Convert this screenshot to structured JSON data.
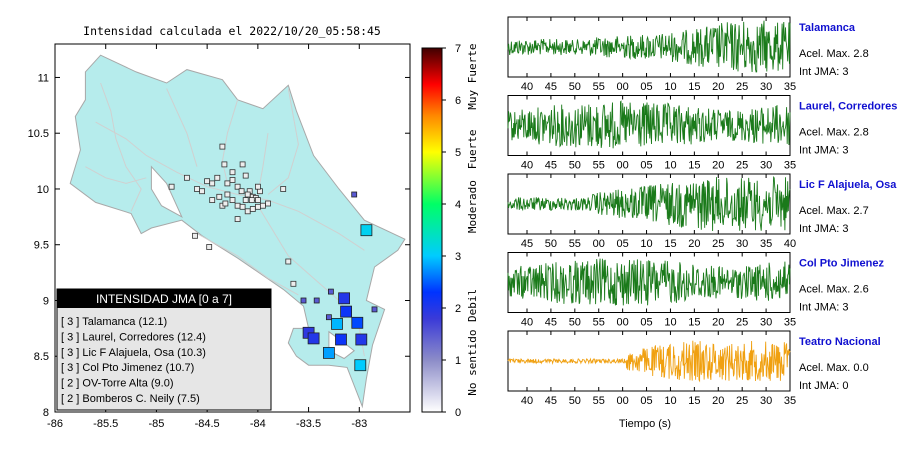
{
  "title": "Intensidad calculada el 2022/10/20_05:58:45",
  "chart_data": {
    "type": "map",
    "xaxis_ticks": [
      "-86",
      "-85.5",
      "-85",
      "-84.5",
      "-84",
      "-83.5",
      "-83"
    ],
    "yaxis_ticks": [
      "8",
      "8.5",
      "9",
      "9.5",
      "10",
      "10.5",
      "11"
    ],
    "xlim": [
      -86,
      -82.5
    ],
    "ylim": [
      8,
      11.3
    ],
    "colorbar": {
      "ticks": [
        "0",
        "1",
        "2",
        "3",
        "4",
        "5",
        "6",
        "7"
      ],
      "range": [
        0,
        7
      ],
      "level_labels": [
        "No sentido",
        "Debil",
        "Moderado",
        "Fuerte",
        "Muy Fuerte"
      ],
      "colors": [
        "#ffffff",
        "#6b6bd4",
        "#0000ff",
        "#00ccff",
        "#00ff66",
        "#ffff00",
        "#ff8800",
        "#ff0000",
        "#550000"
      ]
    },
    "legend": {
      "header": "INTENSIDAD JMA [0 a 7]",
      "items": [
        "[ 3 ]  Talamanca (12.1)",
        "[ 3 ]  Laurel, Corredores (12.4)",
        "[ 3 ]  Lic F Alajuela, Osa (10.3)",
        "[ 3 ]  Col Pto Jimenez (10.7)",
        "[ 2 ]  OV-Torre Alta (9.0)",
        "[ 2 ]  Bomberos C. Neily (7.5)"
      ]
    },
    "stations": [
      {
        "lon": -82.93,
        "lat": 9.63,
        "val": 3.1
      },
      {
        "lon": -83.15,
        "lat": 9.02,
        "val": 2.0
      },
      {
        "lon": -83.13,
        "lat": 8.9,
        "val": 2.2
      },
      {
        "lon": -83.22,
        "lat": 8.79,
        "val": 2.9
      },
      {
        "lon": -83.02,
        "lat": 8.8,
        "val": 2.4
      },
      {
        "lon": -83.5,
        "lat": 8.71,
        "val": 1.9
      },
      {
        "lon": -83.45,
        "lat": 8.66,
        "val": 2.0
      },
      {
        "lon": -83.18,
        "lat": 8.65,
        "val": 2.2
      },
      {
        "lon": -82.98,
        "lat": 8.65,
        "val": 2.0
      },
      {
        "lon": -83.3,
        "lat": 8.53,
        "val": 2.8
      },
      {
        "lon": -82.99,
        "lat": 8.42,
        "val": 3.0
      },
      {
        "lon": -83.55,
        "lat": 9.0,
        "val": 1.5
      },
      {
        "lon": -83.42,
        "lat": 9.0,
        "val": 1.5
      },
      {
        "lon": -83.28,
        "lat": 9.08,
        "val": 1.5
      },
      {
        "lon": -82.85,
        "lat": 8.92,
        "val": 1.5
      },
      {
        "lon": -83.3,
        "lat": 8.85,
        "val": 1.5
      },
      {
        "lon": -83.05,
        "lat": 9.95,
        "val": 1.5
      }
    ],
    "small_stations": [
      [
        -84.35,
        10.38
      ],
      [
        -84.33,
        10.22
      ],
      [
        -84.15,
        10.22
      ],
      [
        -84.25,
        10.15
      ],
      [
        -84.12,
        10.12
      ],
      [
        -84.5,
        10.07
      ],
      [
        -84.45,
        10.05
      ],
      [
        -84.2,
        10.02
      ],
      [
        -84.16,
        9.98
      ],
      [
        -84.08,
        9.98
      ],
      [
        -84.1,
        9.95
      ],
      [
        -84.05,
        9.93
      ],
      [
        -84.02,
        9.92
      ],
      [
        -84.06,
        9.9
      ],
      [
        -84.12,
        9.9
      ],
      [
        -84.0,
        9.9
      ],
      [
        -84.2,
        9.85
      ],
      [
        -84.0,
        9.84
      ],
      [
        -83.9,
        9.87
      ],
      [
        -83.95,
        9.85
      ],
      [
        -84.3,
        9.95
      ],
      [
        -84.38,
        9.93
      ],
      [
        -84.35,
        9.85
      ],
      [
        -84.1,
        9.8
      ],
      [
        -84.55,
        9.98
      ],
      [
        -84.3,
        10.05
      ],
      [
        -84.25,
        10.08
      ],
      [
        -84.4,
        10.1
      ],
      [
        -84.45,
        9.9
      ],
      [
        -84.25,
        9.9
      ],
      [
        -84.15,
        9.84
      ],
      [
        -84.05,
        9.82
      ],
      [
        -83.98,
        9.98
      ],
      [
        -84.62,
        9.58
      ],
      [
        -84.48,
        9.48
      ],
      [
        -83.7,
        9.35
      ],
      [
        -83.65,
        9.15
      ],
      [
        -84.6,
        10.0
      ],
      [
        -84.2,
        9.73
      ],
      [
        -84.32,
        9.87
      ],
      [
        -84.0,
        10.02
      ],
      [
        -83.75,
        10.0
      ],
      [
        -84.7,
        10.1
      ],
      [
        -84.85,
        10.02
      ]
    ],
    "traces": [
      {
        "name": "Talamanca",
        "acel_label": "Acel. Max. 2.8",
        "int_label": "Int JMA: 3",
        "ticks": [
          "40",
          "45",
          "50",
          "55",
          "00",
          "05",
          "10",
          "15",
          "20",
          "25",
          "30",
          "35"
        ],
        "color": "#1a7a1a",
        "style": "buildup"
      },
      {
        "name": "Laurel, Corredores",
        "acel_label": "Acel. Max. 2.8",
        "int_label": "Int JMA: 3",
        "ticks": [
          "40",
          "45",
          "50",
          "55",
          "00",
          "05",
          "10",
          "15",
          "20",
          "25",
          "30",
          "35"
        ],
        "color": "#1a7a1a",
        "style": "full"
      },
      {
        "name": "Lic F Alajuela, Osa",
        "acel_label": "Acel. Max. 2.7",
        "int_label": "Int JMA: 3",
        "ticks": [
          "45",
          "50",
          "55",
          "00",
          "05",
          "10",
          "15",
          "20",
          "25",
          "30",
          "35",
          "40"
        ],
        "color": "#1a7a1a",
        "style": "ramp"
      },
      {
        "name": "Col Pto Jimenez",
        "acel_label": "Acel. Max. 2.6",
        "int_label": "Int JMA: 3",
        "ticks": [
          "40",
          "45",
          "50",
          "55",
          "00",
          "05",
          "10",
          "15",
          "20",
          "25",
          "30",
          "35"
        ],
        "color": "#1a7a1a",
        "style": "full"
      },
      {
        "name": "Teatro Nacional",
        "acel_label": "Acel. Max. 0.0",
        "int_label": "Int JMA: 0",
        "ticks": [
          "40",
          "45",
          "50",
          "55",
          "00",
          "05",
          "10",
          "15",
          "20",
          "25",
          "30",
          "35"
        ],
        "color": "#f0a010",
        "style": "late"
      }
    ],
    "xlabel": "Tiempo (s)"
  }
}
